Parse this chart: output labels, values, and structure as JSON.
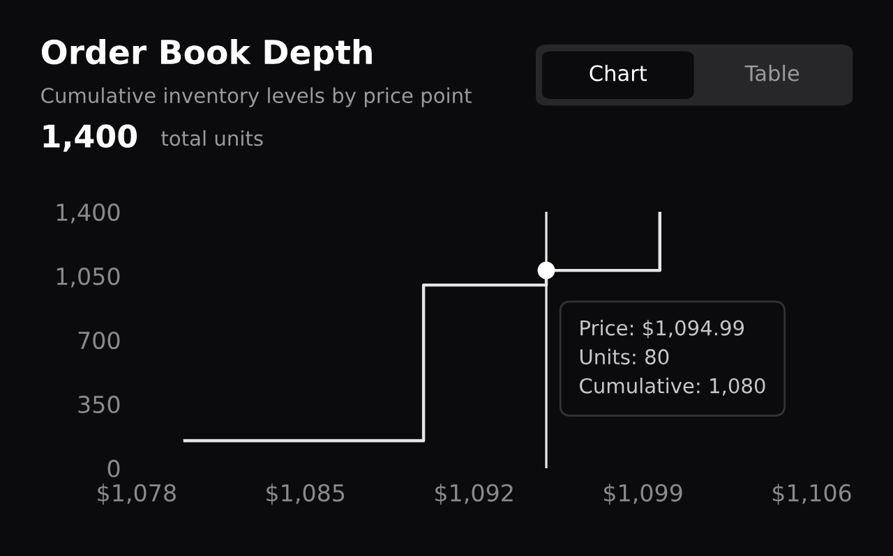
{
  "chart_data": {
    "type": "step",
    "title": "Order Book Depth",
    "subtitle": "Cumulative inventory levels by price point",
    "x": [
      1080,
      1089.9,
      1094.99,
      1099.7
    ],
    "series": [
      {
        "color": "#e6e6e6",
        "values": [
          150,
          1000,
          1080,
          1400
        ]
      }
    ],
    "xlim": [
      1078,
      1106
    ],
    "xticks": [
      {
        "value": 1078,
        "label": "$1,078"
      },
      {
        "value": 1085,
        "label": "$1,085"
      },
      {
        "value": 1092,
        "label": "$1,092"
      },
      {
        "value": 1099,
        "label": "$1,099"
      },
      {
        "value": 1106,
        "label": "$1,106"
      }
    ],
    "ylim": [
      0,
      1400
    ],
    "yticks": [
      0,
      350,
      700,
      {
        "value": 1050,
        "label": "1,050"
      },
      {
        "value": 1400,
        "label": "1,400"
      }
    ],
    "grid": false,
    "ref_lines": [
      {
        "axis": "x",
        "value": 1094.99,
        "label": null,
        "color": "#e6e6e6"
      }
    ],
    "annotations": [
      "1,400",
      "total units",
      "Chart",
      "Table",
      "Price: $1,094.99\nUnits: 80\nCumulative: 1,080"
    ]
  }
}
